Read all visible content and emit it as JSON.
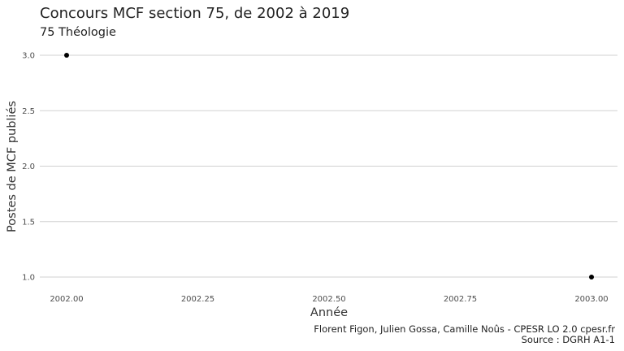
{
  "chart_data": {
    "type": "scatter",
    "title": "Concours MCF section 75, de 2002 à 2019",
    "subtitle": "75 Théologie",
    "xlabel": "Année",
    "ylabel": "Postes de MCF publiés",
    "x": [
      2002,
      2003
    ],
    "y": [
      3,
      1
    ],
    "xlim": [
      2002,
      2003
    ],
    "ylim": [
      1,
      3
    ],
    "x_ticks": [
      2002.0,
      2002.25,
      2002.5,
      2002.75,
      2003.0
    ],
    "x_tick_labels": [
      "2002.00",
      "2002.25",
      "2002.50",
      "2002.75",
      "2003.00"
    ],
    "y_ticks": [
      1.0,
      1.5,
      2.0,
      2.5,
      3.0
    ],
    "y_tick_labels": [
      "1.0",
      "1.5",
      "2.0",
      "2.5",
      "3.0"
    ],
    "grid": "horizontal-major",
    "caption_lines": [
      "Florent Figon, Julien Gossa, Camille Noûs - CPESR LO 2.0 cpesr.fr",
      "Source : DGRH A1-1"
    ],
    "colors": {
      "point": "#000000",
      "grid": "#d0d0d0",
      "background": "#ffffff"
    }
  }
}
